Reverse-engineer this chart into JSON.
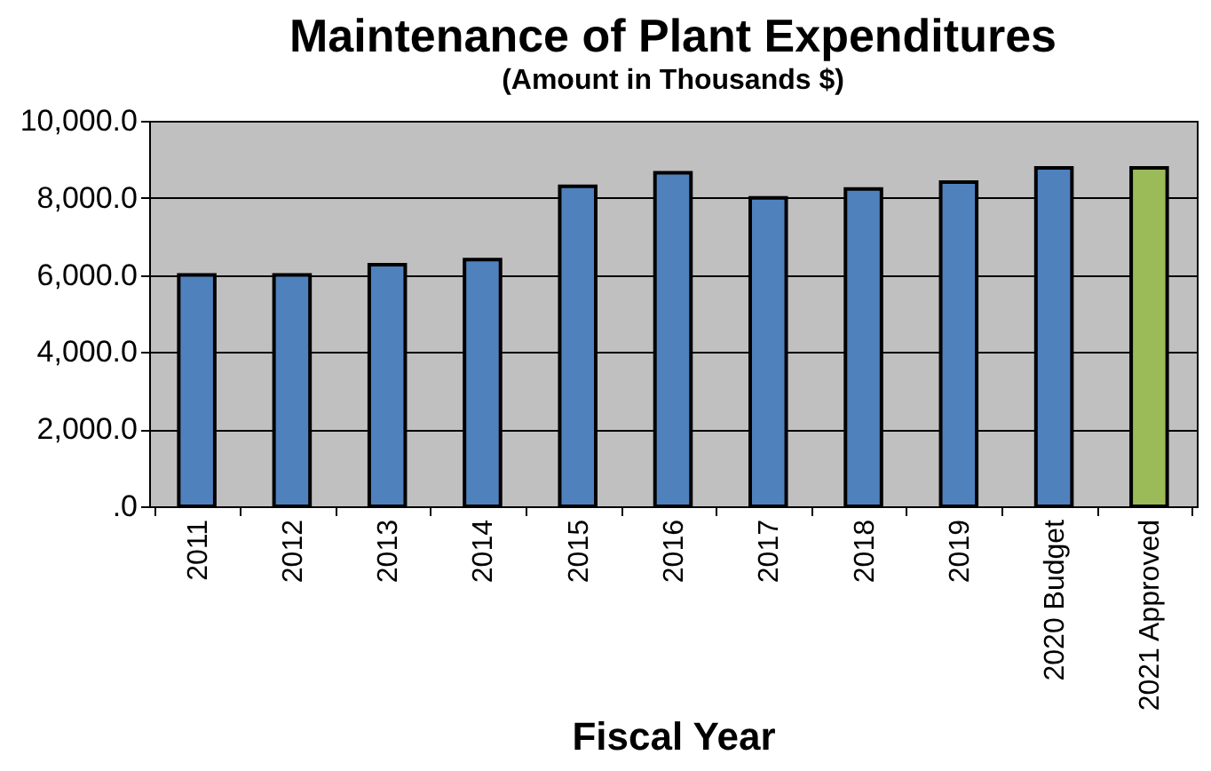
{
  "chart_data": {
    "type": "bar",
    "title": "Maintenance of Plant Expenditures",
    "subtitle": "(Amount in Thousands $)",
    "xlabel": "Fiscal Year",
    "categories": [
      "2011",
      "2012",
      "2013",
      "2014",
      "2015",
      "2016",
      "2017",
      "2018",
      "2019",
      "2020 Budget",
      "2021 Approved"
    ],
    "values": [
      6000,
      6000,
      6270,
      6400,
      8300,
      8650,
      8000,
      8230,
      8410,
      8780,
      8780
    ],
    "colors": [
      "#4f81bd",
      "#4f81bd",
      "#4f81bd",
      "#4f81bd",
      "#4f81bd",
      "#4f81bd",
      "#4f81bd",
      "#4f81bd",
      "#4f81bd",
      "#4f81bd",
      "#9bbb59"
    ],
    "ylim": [
      0,
      10000
    ],
    "yticks": [
      {
        "value": 0,
        "label": ".0"
      },
      {
        "value": 2000,
        "label": "2,000.0"
      },
      {
        "value": 4000,
        "label": "4,000.0"
      },
      {
        "value": 6000,
        "label": "6,000.0"
      },
      {
        "value": 8000,
        "label": "8,000.0"
      },
      {
        "value": 10000,
        "label": "10,000.0"
      }
    ],
    "grid": "y"
  }
}
